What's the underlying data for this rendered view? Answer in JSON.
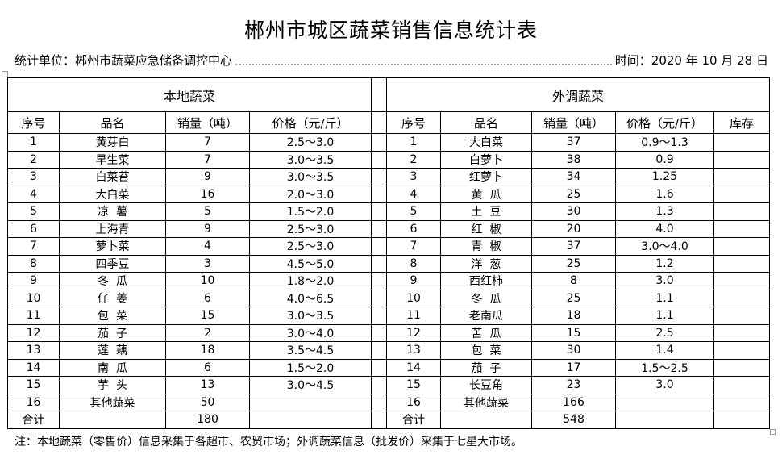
{
  "title": "郴州市城区蔬菜销售信息统计表",
  "info": {
    "unit": "统计单位：郴州市蔬菜应急储备调控中心",
    "time": "时间：2020 年 10 月 28 日"
  },
  "local": {
    "section": "本地蔬菜",
    "headers": [
      "序号",
      "品名",
      "销量（吨）",
      "价格（元/斤）"
    ],
    "rows": [
      [
        "1",
        "黄芽白",
        "7",
        "2.5～3.0"
      ],
      [
        "2",
        "早生菜",
        "7",
        "3.0～3.5"
      ],
      [
        "3",
        "白菜苔",
        "9",
        "3.0～3.5"
      ],
      [
        "4",
        "大白菜",
        "16",
        "2.0～3.0"
      ],
      [
        "5",
        "凉  薯",
        "5",
        "1.5～2.0"
      ],
      [
        "6",
        "上海青",
        "9",
        "2.5～3.0"
      ],
      [
        "7",
        "萝卜菜",
        "4",
        "2.5～3.0"
      ],
      [
        "8",
        "四季豆",
        "3",
        "4.5～5.0"
      ],
      [
        "9",
        "冬  瓜",
        "10",
        "1.8～2.0"
      ],
      [
        "10",
        "仔  姜",
        "6",
        "4.0～6.5"
      ],
      [
        "11",
        "包  菜",
        "15",
        "3.0～3.5"
      ],
      [
        "12",
        "茄  子",
        "2",
        "3.0～4.0"
      ],
      [
        "13",
        "莲  藕",
        "18",
        "3.5～4.5"
      ],
      [
        "14",
        "南  瓜",
        "6",
        "1.5～2.0"
      ],
      [
        "15",
        "芋  头",
        "13",
        "3.0～4.5"
      ],
      [
        "16",
        "其他蔬菜",
        "50",
        ""
      ],
      [
        "合计",
        "",
        "180",
        ""
      ]
    ]
  },
  "external": {
    "section": "外调蔬菜",
    "headers": [
      "序号",
      "品名",
      "销量（吨）",
      "价格（元/斤）",
      "库存"
    ],
    "rows": [
      [
        "1",
        "大白菜",
        "37",
        "0.9～1.3",
        ""
      ],
      [
        "2",
        "白萝卜",
        "38",
        "0.9",
        ""
      ],
      [
        "3",
        "红萝卜",
        "34",
        "1.25",
        ""
      ],
      [
        "4",
        "黄  瓜",
        "25",
        "1.6",
        ""
      ],
      [
        "5",
        "土  豆",
        "30",
        "1.3",
        ""
      ],
      [
        "6",
        "红  椒",
        "20",
        "4.0",
        ""
      ],
      [
        "7",
        "青  椒",
        "37",
        "3.0～4.0",
        ""
      ],
      [
        "8",
        "洋  葱",
        "25",
        "1.2",
        ""
      ],
      [
        "9",
        "西红柿",
        "8",
        "3.0",
        ""
      ],
      [
        "10",
        "冬  瓜",
        "25",
        "1.1",
        ""
      ],
      [
        "11",
        "老南瓜",
        "18",
        "1.1",
        ""
      ],
      [
        "12",
        "苦  瓜",
        "15",
        "2.5",
        ""
      ],
      [
        "13",
        "包  菜",
        "30",
        "1.4",
        ""
      ],
      [
        "14",
        "茄  子",
        "17",
        "1.5～2.5",
        ""
      ],
      [
        "15",
        "长豆角",
        "23",
        "3.0",
        ""
      ],
      [
        "16",
        "其他蔬菜",
        "166",
        "",
        ""
      ],
      [
        "合计",
        "",
        "548",
        "",
        ""
      ]
    ]
  },
  "note": "注：本地蔬菜（零售价）信息采集于各超市、农贸市场；外调蔬菜信息（批发价）采集于七星大市场。"
}
